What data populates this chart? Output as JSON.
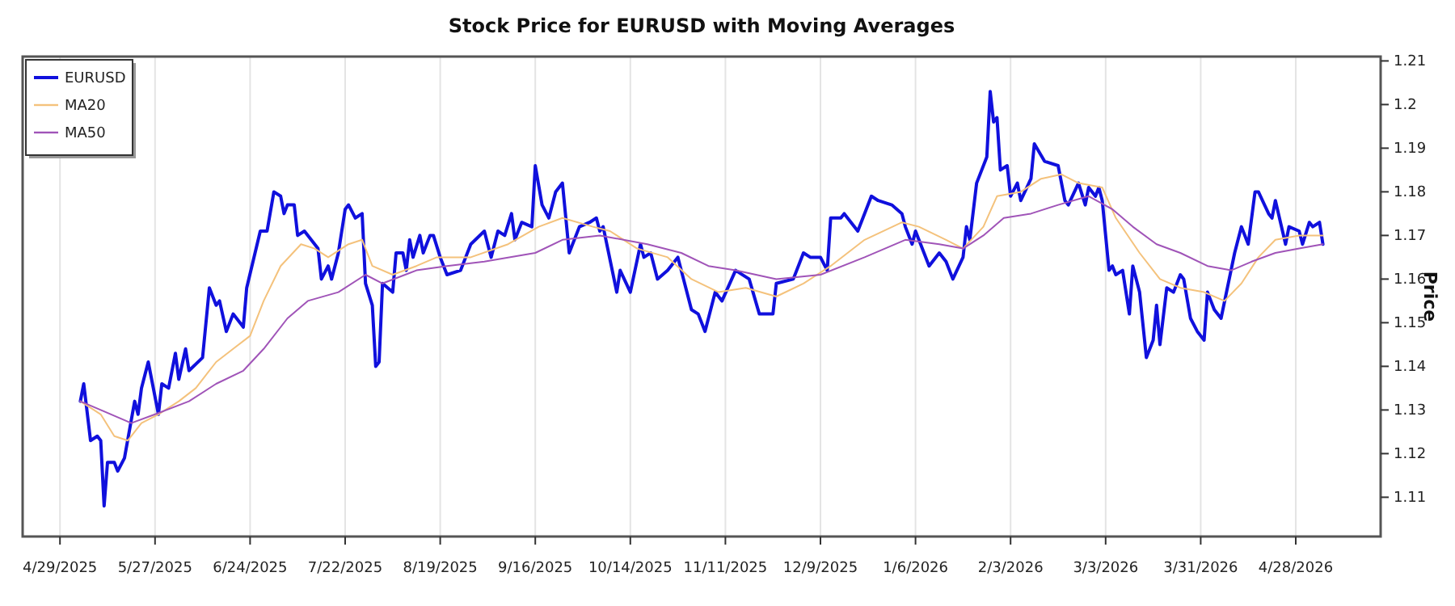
{
  "chart_data": {
    "type": "line",
    "title": "Stock Price for EURUSD with Moving Averages",
    "ylabel": "Price",
    "grid": "x",
    "legend": "top left",
    "line_style": "solid",
    "marker": "none",
    "xlim": [
      "2025-04-18",
      "2026-05-23"
    ],
    "xticks": [
      {
        "value": "2025-04-29",
        "label": "4/29/2025"
      },
      {
        "value": "2025-05-27",
        "label": "5/27/2025"
      },
      {
        "value": "2025-06-24",
        "label": "6/24/2025"
      },
      {
        "value": "2025-07-22",
        "label": "7/22/2025"
      },
      {
        "value": "2025-08-19",
        "label": "8/19/2025"
      },
      {
        "value": "2025-09-16",
        "label": "9/16/2025"
      },
      {
        "value": "2025-10-14",
        "label": "10/14/2025"
      },
      {
        "value": "2025-11-11",
        "label": "11/11/2025"
      },
      {
        "value": "2025-12-09",
        "label": "12/9/2025"
      },
      {
        "value": "2026-01-06",
        "label": "1/6/2026"
      },
      {
        "value": "2026-02-03",
        "label": "2/3/2026"
      },
      {
        "value": "2026-03-03",
        "label": "3/3/2026"
      },
      {
        "value": "2026-03-31",
        "label": "3/31/2026"
      },
      {
        "value": "2026-04-28",
        "label": "4/28/2026"
      }
    ],
    "ylim": [
      1.101,
      1.211
    ],
    "yticks": [
      1.11,
      1.12,
      1.13,
      1.14,
      1.15,
      1.16,
      1.17,
      1.18,
      1.19,
      1.2,
      1.21
    ],
    "series": [
      {
        "name": "EURUSD",
        "color": "#1010dd",
        "x": [
          "2025-05-05",
          "2025-05-06",
          "2025-05-08",
          "2025-05-10",
          "2025-05-11",
          "2025-05-12",
          "2025-05-13",
          "2025-05-15",
          "2025-05-16",
          "2025-05-18",
          "2025-05-21",
          "2025-05-22",
          "2025-05-23",
          "2025-05-25",
          "2025-05-28",
          "2025-05-29",
          "2025-05-31",
          "2025-06-02",
          "2025-06-03",
          "2025-06-05",
          "2025-06-06",
          "2025-06-10",
          "2025-06-12",
          "2025-06-14",
          "2025-06-15",
          "2025-06-17",
          "2025-06-19",
          "2025-06-22",
          "2025-06-23",
          "2025-06-27",
          "2025-06-29",
          "2025-07-01",
          "2025-07-03",
          "2025-07-04",
          "2025-07-05",
          "2025-07-07",
          "2025-07-08",
          "2025-07-10",
          "2025-07-14",
          "2025-07-15",
          "2025-07-17",
          "2025-07-18",
          "2025-07-20",
          "2025-07-22",
          "2025-07-23",
          "2025-07-25",
          "2025-07-27",
          "2025-07-28",
          "2025-07-30",
          "2025-07-31",
          "2025-08-01",
          "2025-08-02",
          "2025-08-05",
          "2025-08-06",
          "2025-08-08",
          "2025-08-09",
          "2025-08-10",
          "2025-08-11",
          "2025-08-13",
          "2025-08-14",
          "2025-08-16",
          "2025-08-17",
          "2025-08-19",
          "2025-08-21",
          "2025-08-25",
          "2025-08-28",
          "2025-09-01",
          "2025-09-03",
          "2025-09-05",
          "2025-09-07",
          "2025-09-09",
          "2025-09-10",
          "2025-09-12",
          "2025-09-15",
          "2025-09-16",
          "2025-09-18",
          "2025-09-20",
          "2025-09-22",
          "2025-09-24",
          "2025-09-26",
          "2025-09-29",
          "2025-10-02",
          "2025-10-04",
          "2025-10-05",
          "2025-10-06",
          "2025-10-10",
          "2025-10-11",
          "2025-10-14",
          "2025-10-17",
          "2025-10-18",
          "2025-10-20",
          "2025-10-22",
          "2025-10-25",
          "2025-10-28",
          "2025-11-01",
          "2025-11-03",
          "2025-11-05",
          "2025-11-08",
          "2025-11-10",
          "2025-11-14",
          "2025-11-18",
          "2025-11-21",
          "2025-11-25",
          "2025-11-26",
          "2025-12-01",
          "2025-12-04",
          "2025-12-06",
          "2025-12-09",
          "2025-12-11",
          "2025-12-12",
          "2025-12-15",
          "2025-12-16",
          "2025-12-20",
          "2025-12-24",
          "2025-12-26",
          "2025-12-30",
          "2026-01-02",
          "2026-01-03",
          "2026-01-05",
          "2026-01-06",
          "2026-01-10",
          "2026-01-13",
          "2026-01-15",
          "2026-01-17",
          "2026-01-20",
          "2026-01-21",
          "2026-01-22",
          "2026-01-24",
          "2026-01-27",
          "2026-01-28",
          "2026-01-29",
          "2026-01-30",
          "2026-01-31",
          "2026-02-02",
          "2026-02-03",
          "2026-02-05",
          "2026-02-06",
          "2026-02-09",
          "2026-02-10",
          "2026-02-13",
          "2026-02-17",
          "2026-02-19",
          "2026-02-20",
          "2026-02-23",
          "2026-02-25",
          "2026-02-26",
          "2026-02-28",
          "2026-03-01",
          "2026-03-02",
          "2026-03-04",
          "2026-03-05",
          "2026-03-06",
          "2026-03-08",
          "2026-03-10",
          "2026-03-11",
          "2026-03-13",
          "2026-03-15",
          "2026-03-17",
          "2026-03-18",
          "2026-03-19",
          "2026-03-21",
          "2026-03-23",
          "2026-03-25",
          "2026-03-26",
          "2026-03-28",
          "2026-03-30",
          "2026-04-01",
          "2026-04-02",
          "2026-04-04",
          "2026-04-06",
          "2026-04-10",
          "2026-04-12",
          "2026-04-14",
          "2026-04-16",
          "2026-04-17",
          "2026-04-20",
          "2026-04-21",
          "2026-04-22",
          "2026-04-25",
          "2026-04-26",
          "2026-04-29",
          "2026-04-30",
          "2026-05-02",
          "2026-05-03",
          "2026-05-05",
          "2026-05-06"
        ],
        "values": [
          1.132,
          1.136,
          1.123,
          1.124,
          1.123,
          1.108,
          1.118,
          1.118,
          1.116,
          1.119,
          1.132,
          1.129,
          1.135,
          1.141,
          1.129,
          1.136,
          1.135,
          1.143,
          1.137,
          1.144,
          1.139,
          1.142,
          1.158,
          1.154,
          1.155,
          1.148,
          1.152,
          1.149,
          1.158,
          1.171,
          1.171,
          1.18,
          1.179,
          1.175,
          1.177,
          1.177,
          1.17,
          1.171,
          1.167,
          1.16,
          1.163,
          1.16,
          1.166,
          1.176,
          1.177,
          1.174,
          1.175,
          1.159,
          1.154,
          1.14,
          1.141,
          1.159,
          1.157,
          1.166,
          1.166,
          1.162,
          1.169,
          1.165,
          1.17,
          1.166,
          1.17,
          1.17,
          1.165,
          1.161,
          1.162,
          1.168,
          1.171,
          1.165,
          1.171,
          1.17,
          1.175,
          1.169,
          1.173,
          1.172,
          1.186,
          1.177,
          1.174,
          1.18,
          1.182,
          1.166,
          1.172,
          1.173,
          1.174,
          1.171,
          1.172,
          1.157,
          1.162,
          1.157,
          1.168,
          1.165,
          1.166,
          1.16,
          1.162,
          1.165,
          1.153,
          1.152,
          1.148,
          1.157,
          1.155,
          1.162,
          1.16,
          1.152,
          1.152,
          1.159,
          1.16,
          1.166,
          1.165,
          1.165,
          1.162,
          1.174,
          1.174,
          1.175,
          1.171,
          1.179,
          1.178,
          1.177,
          1.175,
          1.172,
          1.168,
          1.171,
          1.163,
          1.166,
          1.164,
          1.16,
          1.165,
          1.172,
          1.169,
          1.182,
          1.188,
          1.203,
          1.196,
          1.197,
          1.185,
          1.186,
          1.179,
          1.182,
          1.178,
          1.183,
          1.191,
          1.187,
          1.186,
          1.178,
          1.177,
          1.182,
          1.177,
          1.181,
          1.179,
          1.181,
          1.178,
          1.162,
          1.163,
          1.161,
          1.162,
          1.152,
          1.163,
          1.157,
          1.142,
          1.146,
          1.154,
          1.145,
          1.158,
          1.157,
          1.161,
          1.16,
          1.151,
          1.148,
          1.146,
          1.157,
          1.153,
          1.151,
          1.166,
          1.172,
          1.168,
          1.18,
          1.18,
          1.175,
          1.174,
          1.178,
          1.168,
          1.172,
          1.171,
          1.168,
          1.173,
          1.172,
          1.173,
          1.168
        ]
      },
      {
        "name": "MA20",
        "color": "#f4c27c",
        "x": [
          "2025-05-05",
          "2025-05-11",
          "2025-05-15",
          "2025-05-19",
          "2025-05-23",
          "2025-05-28",
          "2025-06-03",
          "2025-06-08",
          "2025-06-14",
          "2025-06-19",
          "2025-06-24",
          "2025-06-28",
          "2025-07-03",
          "2025-07-09",
          "2025-07-13",
          "2025-07-17",
          "2025-07-23",
          "2025-07-27",
          "2025-07-30",
          "2025-08-05",
          "2025-08-12",
          "2025-08-18",
          "2025-08-28",
          "2025-09-08",
          "2025-09-17",
          "2025-09-24",
          "2025-10-03",
          "2025-10-08",
          "2025-10-16",
          "2025-10-25",
          "2025-11-01",
          "2025-11-09",
          "2025-11-17",
          "2025-11-26",
          "2025-12-04",
          "2025-12-12",
          "2025-12-22",
          "2026-01-02",
          "2026-01-07",
          "2026-01-15",
          "2026-01-20",
          "2026-01-26",
          "2026-01-30",
          "2026-02-06",
          "2026-02-12",
          "2026-02-18",
          "2026-02-23",
          "2026-03-02",
          "2026-03-06",
          "2026-03-13",
          "2026-03-19",
          "2026-03-25",
          "2026-04-01",
          "2026-04-07",
          "2026-04-12",
          "2026-04-17",
          "2026-04-22",
          "2026-04-29",
          "2026-05-06"
        ],
        "values": [
          1.132,
          1.129,
          1.124,
          1.123,
          1.127,
          1.129,
          1.132,
          1.135,
          1.141,
          1.144,
          1.147,
          1.155,
          1.163,
          1.168,
          1.167,
          1.165,
          1.168,
          1.169,
          1.163,
          1.161,
          1.163,
          1.165,
          1.165,
          1.168,
          1.172,
          1.174,
          1.172,
          1.171,
          1.167,
          1.165,
          1.16,
          1.157,
          1.158,
          1.156,
          1.159,
          1.163,
          1.169,
          1.173,
          1.172,
          1.169,
          1.167,
          1.172,
          1.179,
          1.18,
          1.183,
          1.184,
          1.182,
          1.181,
          1.174,
          1.166,
          1.16,
          1.158,
          1.157,
          1.155,
          1.159,
          1.165,
          1.169,
          1.17,
          1.17
        ]
      },
      {
        "name": "MA50",
        "color": "#a054b8",
        "x": [
          "2025-05-05",
          "2025-05-11",
          "2025-05-20",
          "2025-05-27",
          "2025-06-06",
          "2025-06-14",
          "2025-06-22",
          "2025-06-28",
          "2025-07-05",
          "2025-07-11",
          "2025-07-20",
          "2025-07-28",
          "2025-08-02",
          "2025-08-12",
          "2025-08-21",
          "2025-09-01",
          "2025-09-16",
          "2025-09-24",
          "2025-10-05",
          "2025-10-19",
          "2025-10-29",
          "2025-11-06",
          "2025-11-14",
          "2025-11-26",
          "2025-12-09",
          "2025-12-22",
          "2026-01-03",
          "2026-01-13",
          "2026-01-20",
          "2026-01-26",
          "2026-02-01",
          "2026-02-09",
          "2026-02-17",
          "2026-02-26",
          "2026-03-05",
          "2026-03-11",
          "2026-03-18",
          "2026-03-25",
          "2026-04-02",
          "2026-04-09",
          "2026-04-15",
          "2026-04-22",
          "2026-04-29",
          "2026-05-06"
        ],
        "values": [
          1.132,
          1.13,
          1.127,
          1.129,
          1.132,
          1.136,
          1.139,
          1.144,
          1.151,
          1.155,
          1.157,
          1.161,
          1.159,
          1.162,
          1.163,
          1.164,
          1.166,
          1.169,
          1.17,
          1.168,
          1.166,
          1.163,
          1.162,
          1.16,
          1.161,
          1.165,
          1.169,
          1.168,
          1.167,
          1.17,
          1.174,
          1.175,
          1.177,
          1.179,
          1.176,
          1.172,
          1.168,
          1.166,
          1.163,
          1.162,
          1.164,
          1.166,
          1.167,
          1.168
        ]
      }
    ]
  }
}
